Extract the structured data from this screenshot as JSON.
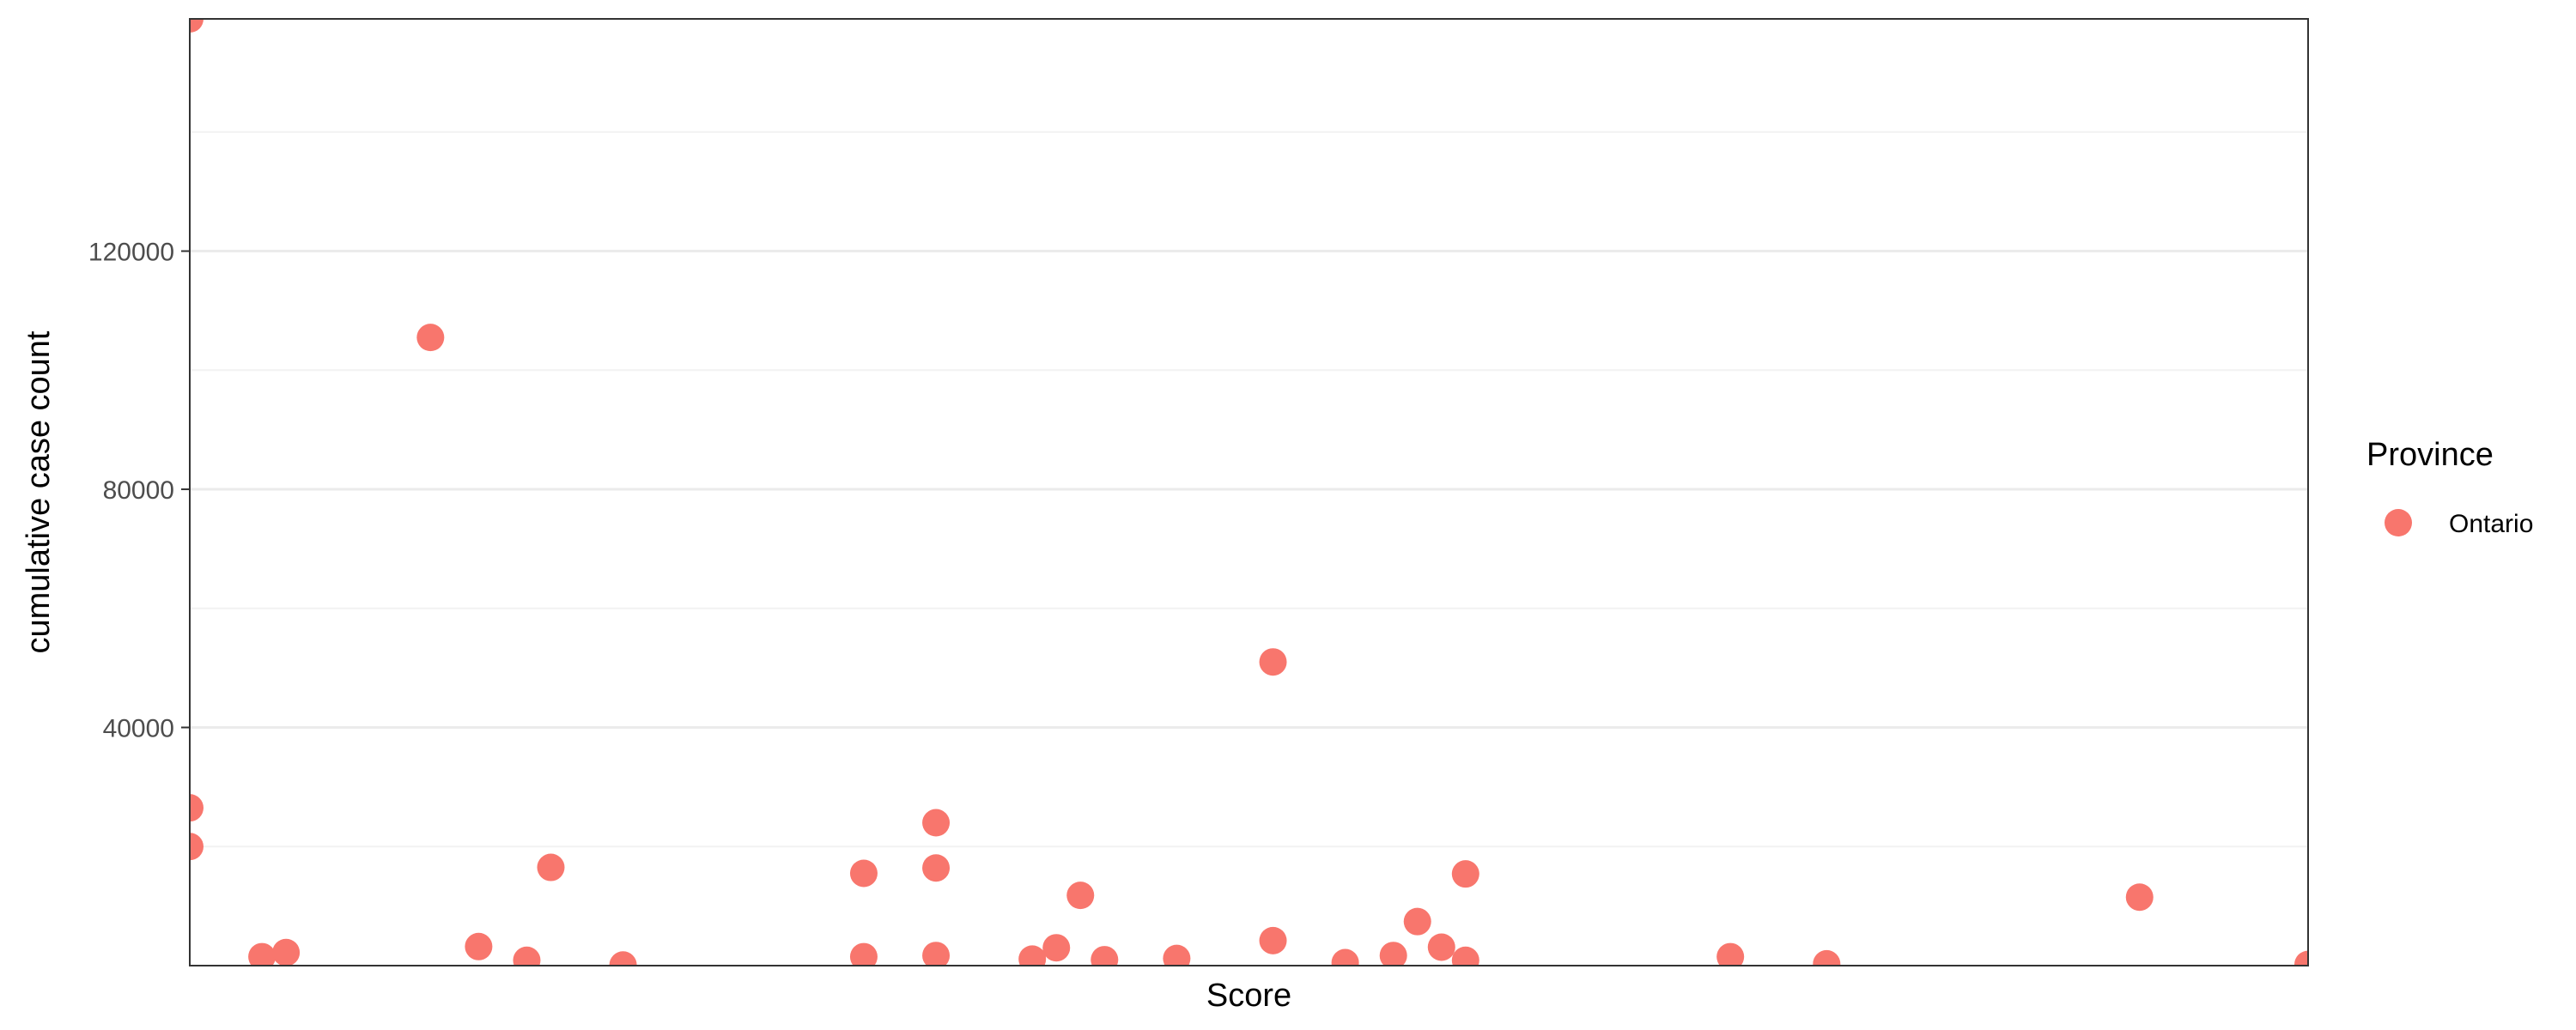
{
  "chart_data": {
    "type": "scatter",
    "title": "",
    "xlabel": "Score",
    "ylabel": "cumulative case count",
    "xlim": [
      0,
      88
    ],
    "ylim": [
      0,
      159000
    ],
    "y_ticks": [
      40000,
      80000,
      120000
    ],
    "y_tick_labels": [
      "40000",
      "80000",
      "120000"
    ],
    "x_ticks": [],
    "grid": {
      "major": true,
      "minor": true
    },
    "legend": {
      "title": "Province",
      "position": "right",
      "entries": [
        {
          "label": "Ontario",
          "color": "#F8766D"
        }
      ]
    },
    "series": [
      {
        "name": "Ontario",
        "color": "#F8766D",
        "points": [
          {
            "x": 0,
            "y": 159000
          },
          {
            "x": 0,
            "y": 26500
          },
          {
            "x": 0,
            "y": 20000
          },
          {
            "x": 3,
            "y": 1500
          },
          {
            "x": 4,
            "y": 2200
          },
          {
            "x": 10,
            "y": 105500
          },
          {
            "x": 12,
            "y": 3200
          },
          {
            "x": 14,
            "y": 900
          },
          {
            "x": 15,
            "y": 16500
          },
          {
            "x": 18,
            "y": 100
          },
          {
            "x": 28,
            "y": 15500
          },
          {
            "x": 28,
            "y": 1500
          },
          {
            "x": 31,
            "y": 24000
          },
          {
            "x": 31,
            "y": 16400
          },
          {
            "x": 31,
            "y": 1700
          },
          {
            "x": 35,
            "y": 1100
          },
          {
            "x": 36,
            "y": 3000
          },
          {
            "x": 37,
            "y": 11800
          },
          {
            "x": 38,
            "y": 1000
          },
          {
            "x": 41,
            "y": 1200
          },
          {
            "x": 45,
            "y": 51000
          },
          {
            "x": 45,
            "y": 4200
          },
          {
            "x": 48,
            "y": 500
          },
          {
            "x": 50,
            "y": 1700
          },
          {
            "x": 51,
            "y": 7400
          },
          {
            "x": 52,
            "y": 3100
          },
          {
            "x": 53,
            "y": 15400
          },
          {
            "x": 53,
            "y": 900
          },
          {
            "x": 64,
            "y": 1500
          },
          {
            "x": 68,
            "y": 300
          },
          {
            "x": 81,
            "y": 11500
          },
          {
            "x": 88,
            "y": 200
          }
        ]
      }
    ]
  }
}
